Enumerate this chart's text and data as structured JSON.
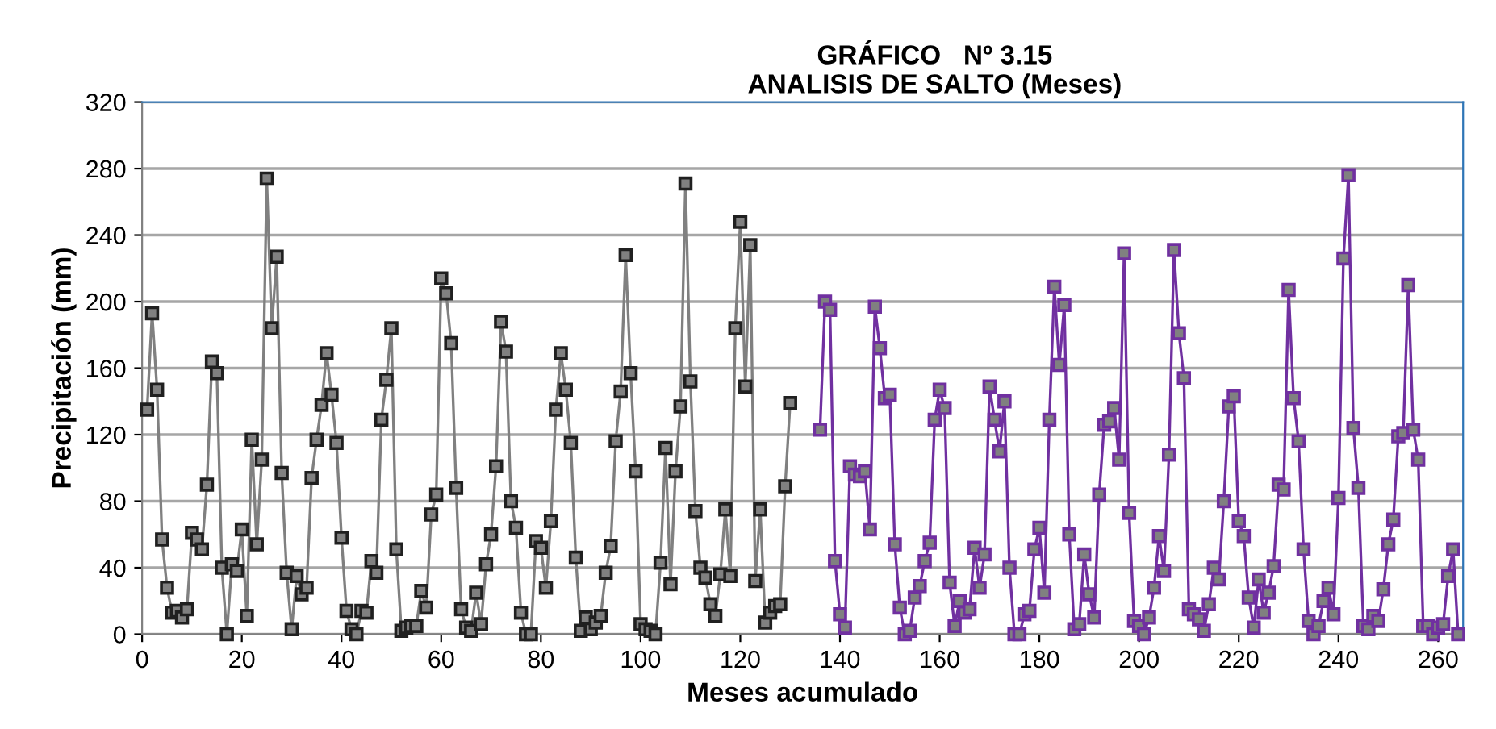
{
  "chart_data": {
    "type": "line",
    "title": "GRÁFICO   Nº 3.15\nANALISIS DE SALTO (Meses)",
    "xlabel": "Meses acumulado",
    "ylabel": "Precipitación (mm)",
    "xlim": [
      0,
      265
    ],
    "xticks": [
      0,
      20,
      40,
      60,
      80,
      100,
      120,
      140,
      160,
      180,
      200,
      220,
      240,
      260
    ],
    "ylim": [
      0,
      320
    ],
    "yticks": [
      0,
      40,
      80,
      120,
      160,
      200,
      240,
      280,
      320
    ],
    "grid": "y",
    "marker": "square",
    "line_style": "solid",
    "series": [
      {
        "color": "#808080",
        "x": [
          1,
          2,
          3,
          4,
          5,
          6,
          7,
          8,
          9,
          10,
          11,
          12,
          13,
          14,
          15,
          16,
          17,
          18,
          19,
          20,
          21,
          22,
          23,
          24,
          25,
          26,
          27,
          28,
          29,
          30,
          31,
          32,
          33,
          34,
          35,
          36,
          37,
          38,
          39,
          40,
          41,
          42,
          43,
          44,
          45,
          46,
          47,
          48,
          49,
          50,
          51,
          52,
          53,
          54,
          55,
          56,
          57,
          58,
          59,
          60,
          61,
          62,
          63,
          64,
          65,
          66,
          67,
          68,
          69,
          70,
          71,
          72,
          73,
          74,
          75,
          76,
          77,
          78,
          79,
          80,
          81,
          82,
          83,
          84,
          85,
          86,
          87,
          88,
          89,
          90,
          91,
          92,
          93,
          94,
          95,
          96,
          97,
          98,
          99,
          100,
          101,
          102,
          103,
          104,
          105,
          106,
          107,
          108,
          109,
          110,
          111,
          112,
          113,
          114,
          115,
          116,
          117,
          118,
          119,
          120,
          121,
          122,
          123,
          124,
          125,
          126,
          127,
          128,
          129,
          130
        ],
        "values": [
          135,
          193,
          147,
          57,
          28,
          13,
          14,
          10,
          15,
          61,
          57,
          51,
          90,
          164,
          157,
          40,
          0,
          42,
          38,
          63,
          11,
          117,
          54,
          105,
          274,
          184,
          227,
          97,
          37,
          3,
          35,
          24,
          28,
          94,
          117,
          138,
          169,
          144,
          115,
          58,
          14,
          3,
          0,
          14,
          13,
          44,
          37,
          129,
          153,
          184,
          51,
          2,
          4,
          5,
          5,
          26,
          16,
          72,
          84,
          214,
          205,
          175,
          88,
          15,
          4,
          2,
          25,
          6,
          42,
          60,
          101,
          188,
          170,
          80,
          64,
          13,
          0,
          0,
          56,
          52,
          28,
          68,
          135,
          169,
          147,
          115,
          46,
          2,
          10,
          3,
          7,
          11,
          37,
          53,
          116,
          146,
          228,
          157,
          98,
          6,
          3,
          2,
          0,
          43,
          112,
          30,
          98,
          137,
          271,
          152,
          74,
          40,
          34,
          18,
          11,
          36,
          75,
          35,
          184,
          248,
          149,
          234,
          32,
          75,
          7,
          13,
          17,
          18,
          89,
          139
        ]
      },
      {
        "color": "#7030a0",
        "x": [
          136,
          137,
          138,
          139,
          140,
          141,
          142,
          143,
          144,
          145,
          146,
          147,
          148,
          149,
          150,
          151,
          152,
          153,
          154,
          155,
          156,
          157,
          158,
          159,
          160,
          161,
          162,
          163,
          164,
          165,
          166,
          167,
          168,
          169,
          170,
          171,
          172,
          173,
          174,
          175,
          176,
          177,
          178,
          179,
          180,
          181,
          182,
          183,
          184,
          185,
          186,
          187,
          188,
          189,
          190,
          191,
          192,
          193,
          194,
          195,
          196,
          197,
          198,
          199,
          200,
          201,
          202,
          203,
          204,
          205,
          206,
          207,
          208,
          209,
          210,
          211,
          212,
          213,
          214,
          215,
          216,
          217,
          218,
          219,
          220,
          221,
          222,
          223,
          224,
          225,
          226,
          227,
          228,
          229,
          230,
          231,
          232,
          233,
          234,
          235,
          236,
          237,
          238,
          239,
          240,
          241,
          242,
          243,
          244,
          245,
          246,
          247,
          248,
          249,
          250,
          251,
          252,
          253,
          254,
          255,
          256,
          257,
          258,
          259,
          260,
          261,
          262,
          263,
          264
        ],
        "values": [
          123,
          200,
          195,
          44,
          12,
          4,
          101,
          96,
          95,
          98,
          63,
          197,
          172,
          142,
          144,
          54,
          16,
          0,
          2,
          22,
          29,
          44,
          55,
          129,
          147,
          136,
          31,
          5,
          20,
          13,
          15,
          52,
          28,
          48,
          149,
          129,
          110,
          140,
          40,
          0,
          0,
          12,
          14,
          51,
          64,
          25,
          129,
          209,
          162,
          198,
          60,
          3,
          6,
          48,
          24,
          10,
          84,
          126,
          128,
          136,
          105,
          229,
          73,
          8,
          5,
          0,
          10,
          28,
          59,
          38,
          108,
          231,
          181,
          154,
          15,
          12,
          9,
          2,
          18,
          40,
          33,
          80,
          137,
          143,
          68,
          59,
          22,
          4,
          33,
          13,
          25,
          41,
          90,
          87,
          207,
          142,
          116,
          51,
          8,
          0,
          5,
          20,
          28,
          12,
          82,
          226,
          276,
          124,
          88,
          5,
          3,
          11,
          8,
          27,
          54,
          69,
          119,
          121,
          210,
          123,
          105,
          5,
          5,
          0,
          4,
          6,
          35,
          51,
          0
        ]
      }
    ]
  }
}
